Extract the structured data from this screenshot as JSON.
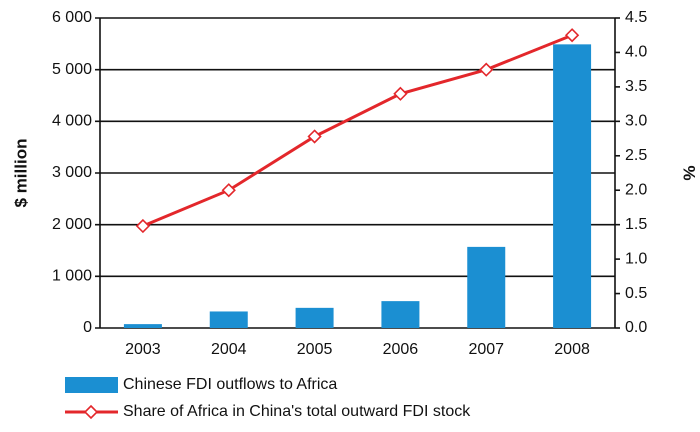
{
  "chart_data": {
    "type": "combo",
    "categories": [
      "2003",
      "2004",
      "2005",
      "2006",
      "2007",
      "2008"
    ],
    "series": [
      {
        "name": "Chinese FDI outflows to Africa",
        "type": "bar",
        "color": "#1b8fd2",
        "values": [
          75,
          320,
          390,
          520,
          1570,
          5490
        ]
      },
      {
        "name": "Share of Africa in China's total outward FDI stock",
        "type": "line",
        "axis": "y2",
        "color": "#e3272b",
        "values": [
          1.48,
          2.0,
          2.78,
          3.4,
          3.75,
          4.25
        ]
      }
    ],
    "ylabel": "$ million",
    "y2label": "%",
    "ylim": [
      0,
      6000
    ],
    "yticks": [
      0,
      {
        "value": 1000,
        "label": "1 000"
      },
      {
        "value": 2000,
        "label": "2 000"
      },
      {
        "value": 3000,
        "label": "3 000"
      },
      {
        "value": 4000,
        "label": "4 000"
      },
      {
        "value": 5000,
        "label": "5 000"
      },
      {
        "value": 6000,
        "label": "6 000"
      }
    ],
    "y2lim": [
      0,
      4.5
    ],
    "y2ticks": [
      {
        "value": 0,
        "label": "0.0"
      },
      0.5,
      {
        "value": 1,
        "label": "1.0"
      },
      1.5,
      {
        "value": 2,
        "label": "2.0"
      },
      2.5,
      {
        "value": 3,
        "label": "3.0"
      },
      3.5,
      {
        "value": 4,
        "label": "4.0"
      },
      4.5
    ],
    "grid": true
  }
}
